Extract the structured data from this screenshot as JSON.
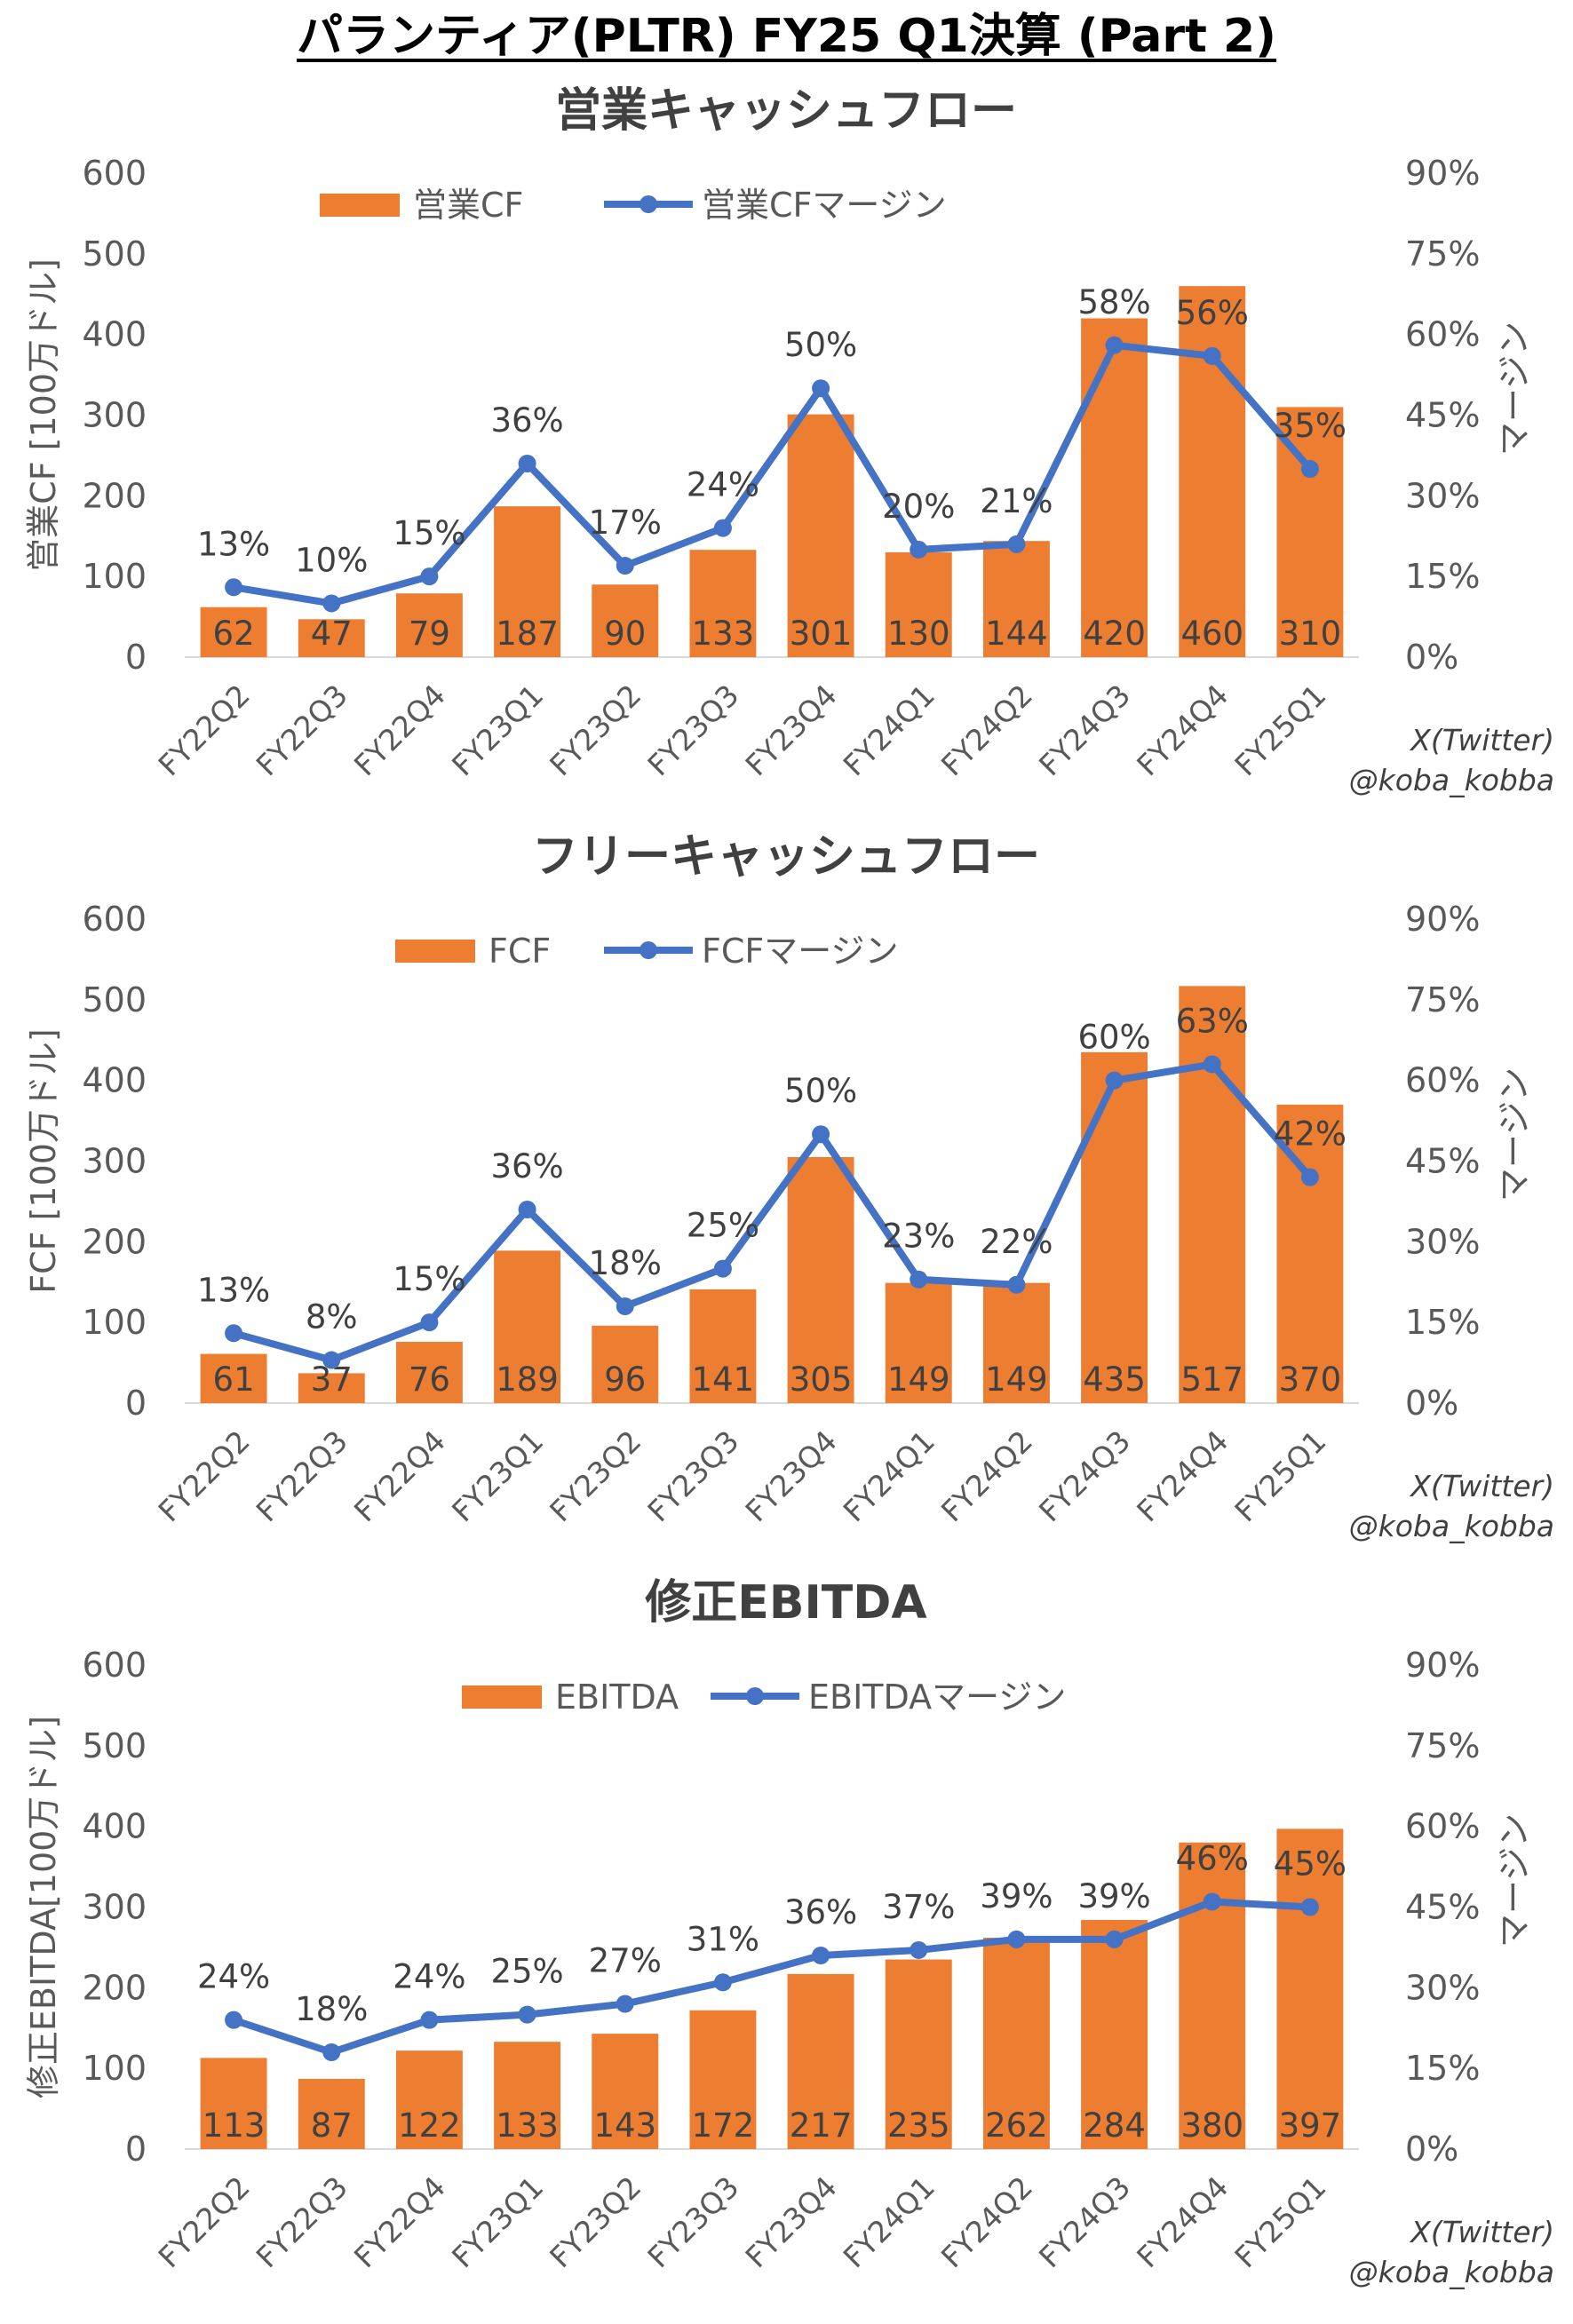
{
  "page_title": "パランティア(PLTR) FY25 Q1決算 (Part 2)",
  "credit": [
    "X(Twitter)",
    "@koba_kobba"
  ],
  "colors": {
    "bar": "#ED7D31",
    "line": "#4472C4",
    "text": "#404040",
    "axis": "#595959"
  },
  "chart_data": [
    {
      "type": "bar",
      "title": "営業キャッシュフロー",
      "categories": [
        "FY22Q2",
        "FY22Q3",
        "FY22Q4",
        "FY23Q1",
        "FY23Q2",
        "FY23Q3",
        "FY23Q4",
        "FY24Q1",
        "FY24Q2",
        "FY24Q3",
        "FY24Q4",
        "FY25Q1"
      ],
      "ylabel": "営業CF [100万ドル]",
      "y2label": "マージン",
      "ylim": [
        0,
        600
      ],
      "yticks": [
        "0",
        "100",
        "200",
        "300",
        "400",
        "500",
        "600"
      ],
      "y2lim": [
        0,
        90
      ],
      "y2ticks": [
        "0%",
        "15%",
        "30%",
        "45%",
        "60%",
        "75%",
        "90%"
      ],
      "series": [
        {
          "name": "営業CF",
          "type": "bar",
          "axis": "left",
          "values": [
            62,
            47,
            79,
            187,
            90,
            133,
            301,
            130,
            144,
            420,
            460,
            310
          ]
        },
        {
          "name": "営業CFマージン",
          "type": "line",
          "axis": "right",
          "values": [
            13,
            10,
            15,
            36,
            17,
            24,
            50,
            20,
            21,
            58,
            56,
            35
          ],
          "labels": [
            "13%",
            "10%",
            "15%",
            "36%",
            "17%",
            "24%",
            "50%",
            "20%",
            "21%",
            "58%",
            "56%",
            "35%"
          ]
        }
      ],
      "legend": "top-center"
    },
    {
      "type": "bar",
      "title": "フリーキャッシュフロー",
      "categories": [
        "FY22Q2",
        "FY22Q3",
        "FY22Q4",
        "FY23Q1",
        "FY23Q2",
        "FY23Q3",
        "FY23Q4",
        "FY24Q1",
        "FY24Q2",
        "FY24Q3",
        "FY24Q4",
        "FY25Q1"
      ],
      "ylabel": "FCF [100万ドル]",
      "y2label": "マージン",
      "ylim": [
        0,
        600
      ],
      "yticks": [
        "0",
        "100",
        "200",
        "300",
        "400",
        "500",
        "600"
      ],
      "y2lim": [
        0,
        90
      ],
      "y2ticks": [
        "0%",
        "15%",
        "30%",
        "45%",
        "60%",
        "75%",
        "90%"
      ],
      "series": [
        {
          "name": "FCF",
          "type": "bar",
          "axis": "left",
          "values": [
            61,
            37,
            76,
            189,
            96,
            141,
            305,
            149,
            149,
            435,
            517,
            370
          ]
        },
        {
          "name": "FCFマージン",
          "type": "line",
          "axis": "right",
          "values": [
            13,
            8,
            15,
            36,
            18,
            25,
            50,
            23,
            22,
            60,
            63,
            42
          ],
          "labels": [
            "13%",
            "8%",
            "15%",
            "36%",
            "18%",
            "25%",
            "50%",
            "23%",
            "22%",
            "60%",
            "63%",
            "42%"
          ]
        }
      ],
      "legend": "top-center"
    },
    {
      "type": "bar",
      "title": "修正EBITDA",
      "categories": [
        "FY22Q2",
        "FY22Q3",
        "FY22Q4",
        "FY23Q1",
        "FY23Q2",
        "FY23Q3",
        "FY23Q4",
        "FY24Q1",
        "FY24Q2",
        "FY24Q3",
        "FY24Q4",
        "FY25Q1"
      ],
      "ylabel": "修正EBITDA[100万ドル]",
      "y2label": "マージン",
      "ylim": [
        0,
        600
      ],
      "yticks": [
        "0",
        "100",
        "200",
        "300",
        "400",
        "500",
        "600"
      ],
      "y2lim": [
        0,
        90
      ],
      "y2ticks": [
        "0%",
        "15%",
        "30%",
        "45%",
        "60%",
        "75%",
        "90%"
      ],
      "series": [
        {
          "name": "EBITDA",
          "type": "bar",
          "axis": "left",
          "values": [
            113,
            87,
            122,
            133,
            143,
            172,
            217,
            235,
            262,
            284,
            380,
            397
          ]
        },
        {
          "name": "EBITDAマージン",
          "type": "line",
          "axis": "right",
          "values": [
            24,
            18,
            24,
            25,
            27,
            31,
            36,
            37,
            39,
            39,
            46,
            45
          ],
          "labels": [
            "24%",
            "18%",
            "24%",
            "25%",
            "27%",
            "31%",
            "36%",
            "37%",
            "39%",
            "39%",
            "46%",
            "45%"
          ]
        }
      ],
      "legend": "top-center"
    }
  ]
}
